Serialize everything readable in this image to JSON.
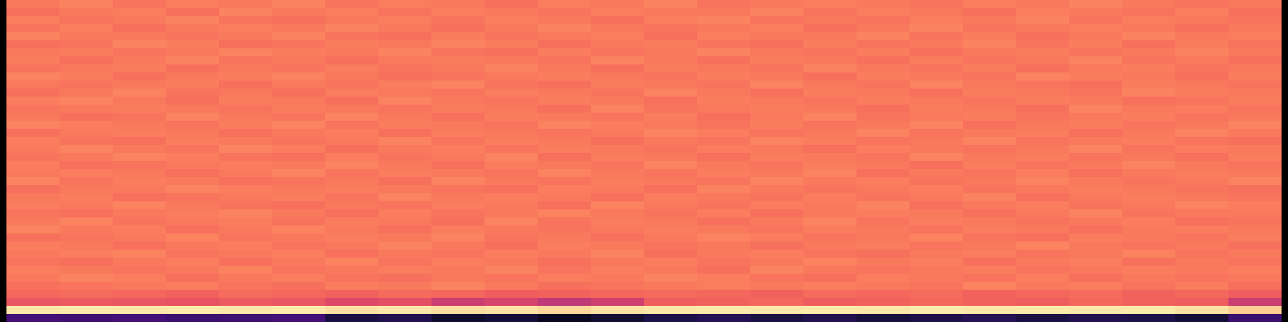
{
  "chart_data": {
    "type": "heatmap",
    "color": "magma",
    "tick_labels": false,
    "zlim": [
      0,
      1
    ],
    "cells": [
      [
        0.72,
        0.74,
        0.71,
        0.73,
        0.72,
        0.74,
        0.71,
        0.73,
        0.72,
        0.7,
        0.73,
        0.72,
        0.74,
        0.71,
        0.72,
        0.73,
        0.72,
        0.71,
        0.73,
        0.72,
        0.74,
        0.72,
        0.71,
        0.72
      ],
      [
        0.7,
        0.72,
        0.73,
        0.7,
        0.74,
        0.72,
        0.73,
        0.71,
        0.73,
        0.72,
        0.71,
        0.73,
        0.72,
        0.72,
        0.74,
        0.71,
        0.73,
        0.72,
        0.7,
        0.73,
        0.72,
        0.71,
        0.73,
        0.7
      ],
      [
        0.73,
        0.71,
        0.72,
        0.74,
        0.71,
        0.7,
        0.72,
        0.73,
        0.71,
        0.73,
        0.72,
        0.7,
        0.73,
        0.74,
        0.71,
        0.72,
        0.71,
        0.73,
        0.72,
        0.74,
        0.71,
        0.73,
        0.72,
        0.71
      ],
      [
        0.71,
        0.73,
        0.7,
        0.72,
        0.73,
        0.72,
        0.74,
        0.72,
        0.7,
        0.72,
        0.74,
        0.72,
        0.71,
        0.72,
        0.73,
        0.7,
        0.72,
        0.74,
        0.71,
        0.72,
        0.73,
        0.72,
        0.7,
        0.72
      ],
      [
        0.74,
        0.72,
        0.72,
        0.71,
        0.72,
        0.74,
        0.71,
        0.7,
        0.73,
        0.71,
        0.72,
        0.73,
        0.7,
        0.73,
        0.72,
        0.72,
        0.74,
        0.71,
        0.73,
        0.7,
        0.72,
        0.74,
        0.72,
        0.73
      ],
      [
        0.7,
        0.71,
        0.74,
        0.73,
        0.7,
        0.71,
        0.73,
        0.72,
        0.74,
        0.73,
        0.7,
        0.72,
        0.73,
        0.71,
        0.7,
        0.73,
        0.71,
        0.72,
        0.74,
        0.71,
        0.73,
        0.7,
        0.73,
        0.71
      ],
      [
        0.72,
        0.73,
        0.71,
        0.72,
        0.74,
        0.73,
        0.72,
        0.74,
        0.71,
        0.7,
        0.73,
        0.71,
        0.72,
        0.74,
        0.72,
        0.71,
        0.73,
        0.7,
        0.72,
        0.73,
        0.71,
        0.72,
        0.74,
        0.72
      ],
      [
        0.73,
        0.7,
        0.72,
        0.74,
        0.71,
        0.72,
        0.7,
        0.72,
        0.73,
        0.72,
        0.71,
        0.74,
        0.72,
        0.7,
        0.73,
        0.72,
        0.7,
        0.73,
        0.71,
        0.72,
        0.74,
        0.71,
        0.72,
        0.7
      ],
      [
        0.71,
        0.72,
        0.73,
        0.7,
        0.72,
        0.71,
        0.73,
        0.71,
        0.72,
        0.74,
        0.72,
        0.7,
        0.73,
        0.72,
        0.71,
        0.74,
        0.72,
        0.71,
        0.73,
        0.7,
        0.72,
        0.73,
        0.71,
        0.72
      ],
      [
        0.74,
        0.73,
        0.7,
        0.72,
        0.73,
        0.74,
        0.72,
        0.7,
        0.71,
        0.72,
        0.73,
        0.72,
        0.71,
        0.73,
        0.72,
        0.7,
        0.73,
        0.72,
        0.71,
        0.74,
        0.73,
        0.72,
        0.7,
        0.73
      ],
      [
        0.72,
        0.71,
        0.72,
        0.73,
        0.7,
        0.72,
        0.71,
        0.73,
        0.74,
        0.71,
        0.7,
        0.73,
        0.72,
        0.71,
        0.74,
        0.72,
        0.71,
        0.74,
        0.72,
        0.71,
        0.7,
        0.73,
        0.72,
        0.71
      ],
      [
        0.7,
        0.72,
        0.74,
        0.71,
        0.72,
        0.7,
        0.73,
        0.72,
        0.71,
        0.73,
        0.72,
        0.71,
        0.74,
        0.72,
        0.7,
        0.73,
        0.72,
        0.7,
        0.73,
        0.72,
        0.71,
        0.74,
        0.73,
        0.72
      ],
      [
        0.73,
        0.74,
        0.72,
        0.7,
        0.73,
        0.72,
        0.7,
        0.74,
        0.72,
        0.71,
        0.73,
        0.72,
        0.7,
        0.73,
        0.72,
        0.71,
        0.73,
        0.72,
        0.71,
        0.73,
        0.72,
        0.7,
        0.71,
        0.73
      ],
      [
        0.71,
        0.72,
        0.73,
        0.72,
        0.71,
        0.73,
        0.72,
        0.71,
        0.73,
        0.72,
        0.7,
        0.74,
        0.71,
        0.72,
        0.73,
        0.72,
        0.7,
        0.73,
        0.72,
        0.7,
        0.74,
        0.72,
        0.73,
        0.71
      ],
      [
        0.72,
        0.7,
        0.71,
        0.74,
        0.72,
        0.71,
        0.74,
        0.72,
        0.7,
        0.73,
        0.72,
        0.71,
        0.73,
        0.7,
        0.72,
        0.74,
        0.71,
        0.72,
        0.73,
        0.71,
        0.72,
        0.73,
        0.71,
        0.72
      ],
      [
        0.74,
        0.73,
        0.72,
        0.71,
        0.73,
        0.74,
        0.71,
        0.73,
        0.72,
        0.71,
        0.74,
        0.73,
        0.72,
        0.71,
        0.73,
        0.71,
        0.72,
        0.74,
        0.7,
        0.72,
        0.73,
        0.71,
        0.72,
        0.74
      ],
      [
        0.7,
        0.72,
        0.73,
        0.72,
        0.7,
        0.72,
        0.73,
        0.7,
        0.73,
        0.72,
        0.71,
        0.72,
        0.74,
        0.73,
        0.71,
        0.72,
        0.74,
        0.71,
        0.72,
        0.73,
        0.7,
        0.72,
        0.74,
        0.72
      ],
      [
        0.73,
        0.71,
        0.7,
        0.73,
        0.72,
        0.71,
        0.72,
        0.74,
        0.71,
        0.73,
        0.72,
        0.7,
        0.72,
        0.71,
        0.74,
        0.73,
        0.71,
        0.72,
        0.74,
        0.71,
        0.72,
        0.73,
        0.71,
        0.7
      ],
      [
        0.72,
        0.74,
        0.72,
        0.71,
        0.74,
        0.73,
        0.7,
        0.72,
        0.73,
        0.71,
        0.73,
        0.72,
        0.71,
        0.73,
        0.72,
        0.7,
        0.73,
        0.72,
        0.71,
        0.72,
        0.74,
        0.71,
        0.73,
        0.72
      ],
      [
        0.71,
        0.72,
        0.74,
        0.73,
        0.71,
        0.7,
        0.73,
        0.71,
        0.72,
        0.74,
        0.7,
        0.73,
        0.72,
        0.7,
        0.73,
        0.72,
        0.71,
        0.74,
        0.72,
        0.73,
        0.71,
        0.72,
        0.7,
        0.73
      ],
      [
        0.73,
        0.7,
        0.71,
        0.72,
        0.73,
        0.72,
        0.74,
        0.72,
        0.7,
        0.73,
        0.72,
        0.71,
        0.74,
        0.72,
        0.71,
        0.73,
        0.72,
        0.7,
        0.73,
        0.71,
        0.72,
        0.74,
        0.72,
        0.71
      ],
      [
        0.72,
        0.73,
        0.72,
        0.7,
        0.72,
        0.74,
        0.71,
        0.73,
        0.72,
        0.71,
        0.74,
        0.72,
        0.71,
        0.73,
        0.72,
        0.74,
        0.7,
        0.72,
        0.71,
        0.73,
        0.7,
        0.72,
        0.73,
        0.72
      ],
      [
        0.74,
        0.71,
        0.73,
        0.72,
        0.7,
        0.71,
        0.72,
        0.7,
        0.74,
        0.72,
        0.71,
        0.73,
        0.72,
        0.71,
        0.74,
        0.72,
        0.73,
        0.71,
        0.72,
        0.74,
        0.72,
        0.71,
        0.72,
        0.74
      ],
      [
        0.7,
        0.72,
        0.72,
        0.74,
        0.73,
        0.72,
        0.73,
        0.72,
        0.71,
        0.7,
        0.73,
        0.72,
        0.7,
        0.74,
        0.72,
        0.71,
        0.72,
        0.73,
        0.71,
        0.72,
        0.73,
        0.72,
        0.71,
        0.7
      ],
      [
        0.72,
        0.73,
        0.7,
        0.71,
        0.72,
        0.73,
        0.71,
        0.74,
        0.72,
        0.73,
        0.72,
        0.7,
        0.73,
        0.72,
        0.71,
        0.73,
        0.71,
        0.72,
        0.74,
        0.7,
        0.72,
        0.73,
        0.72,
        0.71
      ],
      [
        0.73,
        0.72,
        0.74,
        0.72,
        0.71,
        0.7,
        0.72,
        0.71,
        0.73,
        0.72,
        0.7,
        0.74,
        0.72,
        0.71,
        0.73,
        0.72,
        0.74,
        0.7,
        0.72,
        0.73,
        0.71,
        0.72,
        0.74,
        0.73
      ],
      [
        0.71,
        0.7,
        0.72,
        0.73,
        0.74,
        0.72,
        0.7,
        0.73,
        0.71,
        0.72,
        0.74,
        0.72,
        0.71,
        0.73,
        0.7,
        0.72,
        0.73,
        0.72,
        0.7,
        0.72,
        0.74,
        0.71,
        0.72,
        0.72
      ],
      [
        0.72,
        0.74,
        0.71,
        0.72,
        0.73,
        0.71,
        0.73,
        0.72,
        0.7,
        0.74,
        0.71,
        0.73,
        0.72,
        0.7,
        0.72,
        0.74,
        0.71,
        0.73,
        0.72,
        0.71,
        0.72,
        0.73,
        0.7,
        0.71
      ],
      [
        0.74,
        0.72,
        0.73,
        0.7,
        0.72,
        0.74,
        0.72,
        0.7,
        0.73,
        0.72,
        0.71,
        0.72,
        0.73,
        0.72,
        0.71,
        0.73,
        0.72,
        0.71,
        0.73,
        0.72,
        0.7,
        0.72,
        0.73,
        0.72
      ],
      [
        0.7,
        0.71,
        0.72,
        0.74,
        0.71,
        0.72,
        0.73,
        0.72,
        0.74,
        0.71,
        0.72,
        0.7,
        0.72,
        0.74,
        0.73,
        0.71,
        0.72,
        0.74,
        0.71,
        0.7,
        0.73,
        0.72,
        0.71,
        0.73
      ],
      [
        0.73,
        0.72,
        0.7,
        0.72,
        0.73,
        0.71,
        0.72,
        0.74,
        0.72,
        0.7,
        0.73,
        0.72,
        0.71,
        0.72,
        0.7,
        0.72,
        0.73,
        0.71,
        0.72,
        0.74,
        0.72,
        0.71,
        0.72,
        0.7
      ],
      [
        0.72,
        0.73,
        0.74,
        0.71,
        0.72,
        0.73,
        0.7,
        0.72,
        0.71,
        0.73,
        0.72,
        0.74,
        0.7,
        0.72,
        0.73,
        0.71,
        0.7,
        0.72,
        0.73,
        0.71,
        0.72,
        0.74,
        0.71,
        0.72
      ],
      [
        0.71,
        0.7,
        0.72,
        0.73,
        0.7,
        0.72,
        0.74,
        0.71,
        0.73,
        0.72,
        0.7,
        0.72,
        0.73,
        0.71,
        0.72,
        0.74,
        0.72,
        0.73,
        0.7,
        0.72,
        0.73,
        0.7,
        0.72,
        0.71
      ],
      [
        0.73,
        0.72,
        0.71,
        0.72,
        0.74,
        0.71,
        0.72,
        0.73,
        0.72,
        0.74,
        0.71,
        0.73,
        0.72,
        0.7,
        0.74,
        0.72,
        0.71,
        0.72,
        0.73,
        0.71,
        0.72,
        0.73,
        0.72,
        0.73
      ],
      [
        0.72,
        0.74,
        0.73,
        0.7,
        0.72,
        0.73,
        0.71,
        0.7,
        0.72,
        0.71,
        0.73,
        0.72,
        0.74,
        0.73,
        0.71,
        0.7,
        0.73,
        0.72,
        0.71,
        0.73,
        0.7,
        0.72,
        0.71,
        0.72
      ],
      [
        0.7,
        0.71,
        0.72,
        0.73,
        0.71,
        0.7,
        0.73,
        0.72,
        0.74,
        0.72,
        0.7,
        0.71,
        0.72,
        0.73,
        0.72,
        0.73,
        0.72,
        0.71,
        0.74,
        0.72,
        0.73,
        0.71,
        0.73,
        0.7
      ],
      [
        0.68,
        0.69,
        0.68,
        0.67,
        0.69,
        0.68,
        0.67,
        0.69,
        0.68,
        0.66,
        0.67,
        0.68,
        0.69,
        0.68,
        0.67,
        0.69,
        0.68,
        0.69,
        0.67,
        0.68,
        0.69,
        0.67,
        0.68,
        0.66
      ],
      [
        0.64,
        0.65,
        0.64,
        0.63,
        0.65,
        0.64,
        0.6,
        0.62,
        0.55,
        0.58,
        0.52,
        0.56,
        0.66,
        0.67,
        0.68,
        0.66,
        0.67,
        0.68,
        0.67,
        0.66,
        0.68,
        0.67,
        0.66,
        0.55
      ],
      [
        0.95,
        0.96,
        0.95,
        0.96,
        0.95,
        0.96,
        0.94,
        0.95,
        0.93,
        0.94,
        0.92,
        0.94,
        0.95,
        0.96,
        0.95,
        0.96,
        0.95,
        0.96,
        0.95,
        0.96,
        0.95,
        0.96,
        0.94,
        0.9
      ],
      [
        0.22,
        0.21,
        0.22,
        0.2,
        0.21,
        0.22,
        0.12,
        0.14,
        0.08,
        0.1,
        0.06,
        0.09,
        0.13,
        0.15,
        0.12,
        0.14,
        0.11,
        0.13,
        0.15,
        0.12,
        0.14,
        0.13,
        0.1,
        0.2
      ]
    ]
  }
}
